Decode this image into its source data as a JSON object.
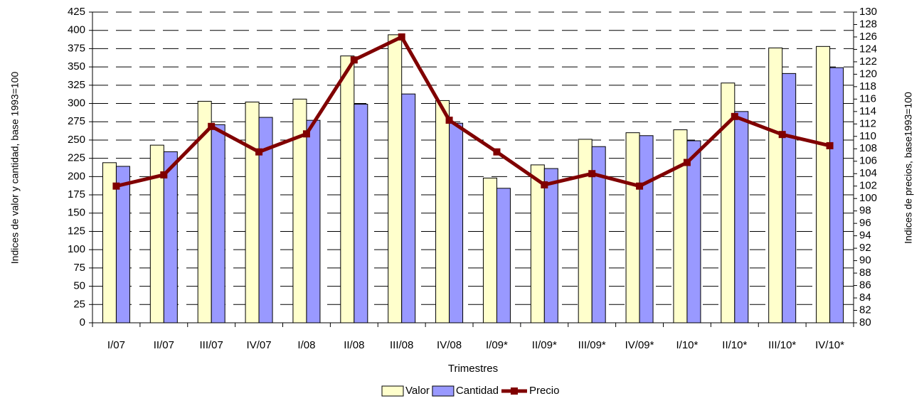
{
  "chart_data": {
    "type": "bar_line",
    "x_label": "Trimestres",
    "y_label": "Indices de valor y cantidad, base 1993=100",
    "y2_label": "Indices de precios, base1993=100",
    "categories": [
      "I/07",
      "II/07",
      "III/07",
      "IV/07",
      "I/08",
      "II/08",
      "III/08",
      "IV/08",
      "I/09*",
      "II/09*",
      "III/09*",
      "IV/09*",
      "I/10*",
      "II/10*",
      "III/10*",
      "IV/10*"
    ],
    "series": [
      {
        "name": "Valor",
        "color": "#ffffcc",
        "type": "bar",
        "values": [
          219,
          243,
          303,
          302,
          306,
          365,
          394,
          304,
          198,
          216,
          251,
          260,
          264,
          328,
          376,
          378
        ]
      },
      {
        "name": "Cantidad",
        "color": "#9999ff",
        "type": "bar",
        "values": [
          214,
          234,
          271,
          281,
          277,
          299,
          313,
          273,
          184,
          211,
          241,
          256,
          249,
          289,
          341,
          349
        ]
      },
      {
        "name": "Precio",
        "color": "#800000",
        "type": "line",
        "axis": "y2",
        "values": [
          102,
          103.8,
          111.6,
          107.5,
          110.4,
          122.3,
          126,
          112.6,
          107.5,
          102.2,
          104,
          102,
          105.8,
          113.2,
          110.3,
          108.5
        ]
      }
    ],
    "ylim": [
      0,
      425
    ],
    "yticks": [
      0,
      25,
      50,
      75,
      100,
      125,
      150,
      175,
      200,
      225,
      250,
      275,
      300,
      325,
      350,
      375,
      400,
      425
    ],
    "y2lim": [
      80,
      130
    ],
    "y2ticks": [
      80,
      82,
      84,
      86,
      88,
      90,
      92,
      94,
      96,
      98,
      100,
      102,
      104,
      106,
      108,
      110,
      112,
      114,
      116,
      118,
      120,
      122,
      124,
      126,
      128,
      130
    ],
    "grid": true,
    "legend": "bottom"
  }
}
